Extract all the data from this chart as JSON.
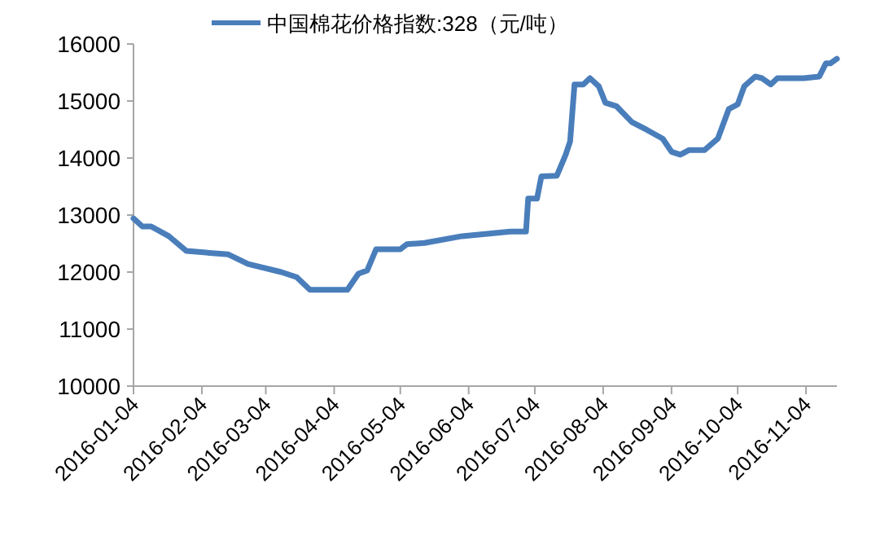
{
  "chart_data": {
    "type": "line",
    "legend": "top",
    "grid": false,
    "marker": "none",
    "line_style": "solid",
    "xlim": [
      "2016-01-04",
      "2016-11-18"
    ],
    "xticks": [
      "2016-01-04",
      "2016-02-04",
      "2016-03-04",
      "2016-04-04",
      "2016-05-04",
      "2016-06-04",
      "2016-07-04",
      "2016-08-04",
      "2016-09-04",
      "2016-10-04",
      "2016-11-04"
    ],
    "ylim": [
      10000,
      16000
    ],
    "yticks": [
      10000,
      11000,
      12000,
      13000,
      14000,
      15000,
      16000
    ],
    "series": [
      {
        "name": "中国棉花价格指数:328（元/吨）",
        "color": "#4a7ebb",
        "x": [
          "2016-01-04",
          "2016-01-08",
          "2016-01-12",
          "2016-01-20",
          "2016-01-28",
          "2016-02-16",
          "2016-02-25",
          "2016-03-11",
          "2016-03-18",
          "2016-03-24",
          "2016-04-10",
          "2016-04-15",
          "2016-04-19",
          "2016-04-23",
          "2016-05-04",
          "2016-05-07",
          "2016-05-15",
          "2016-06-01",
          "2016-06-23",
          "2016-06-30",
          "2016-07-01",
          "2016-07-05",
          "2016-07-07",
          "2016-07-14",
          "2016-07-18",
          "2016-07-20",
          "2016-07-22",
          "2016-07-26",
          "2016-07-29",
          "2016-08-02",
          "2016-08-05",
          "2016-08-10",
          "2016-08-17",
          "2016-08-24",
          "2016-08-31",
          "2016-09-04",
          "2016-09-08",
          "2016-09-12",
          "2016-09-19",
          "2016-09-25",
          "2016-09-30",
          "2016-10-04",
          "2016-10-07",
          "2016-10-12",
          "2016-10-15",
          "2016-10-19",
          "2016-10-22",
          "2016-11-03",
          "2016-11-10",
          "2016-11-13",
          "2016-11-15",
          "2016-11-18"
        ],
        "values": [
          12940,
          12800,
          12800,
          12630,
          12370,
          12310,
          12140,
          12000,
          11910,
          11690,
          11690,
          11970,
          12030,
          12400,
          12400,
          12490,
          12510,
          12630,
          12710,
          12710,
          13290,
          13290,
          13680,
          13690,
          14060,
          14290,
          15290,
          15290,
          15400,
          15260,
          14970,
          14910,
          14630,
          14490,
          14340,
          14110,
          14060,
          14140,
          14140,
          14340,
          14860,
          14940,
          15260,
          15430,
          15400,
          15290,
          15400,
          15400,
          15430,
          15660,
          15660,
          15740
        ]
      }
    ]
  }
}
